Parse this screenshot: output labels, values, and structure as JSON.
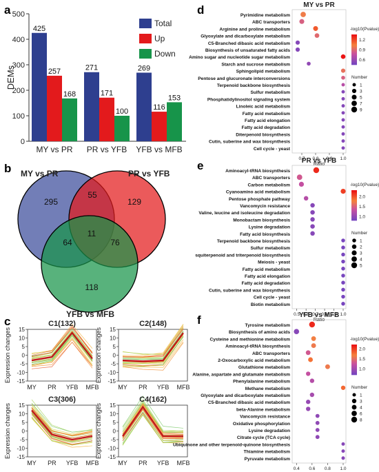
{
  "panel_labels": [
    "a",
    "b",
    "c",
    "d",
    "e",
    "f"
  ],
  "chart_data": [
    {
      "id": "a",
      "type": "bar",
      "ylabel": "DEMs",
      "ylim": [
        0,
        500
      ],
      "yticks": [
        0,
        100,
        200,
        300,
        400,
        500
      ],
      "categories": [
        "MY vs PR",
        "PR vs YFB",
        "YFB vs MFB"
      ],
      "series": [
        {
          "name": "Total",
          "color": "#2e3f8f",
          "values": [
            425,
            271,
            269
          ]
        },
        {
          "name": "Up",
          "color": "#e31a1c",
          "values": [
            257,
            171,
            116
          ]
        },
        {
          "name": "Down",
          "color": "#17944a",
          "values": [
            168,
            100,
            153
          ]
        }
      ],
      "legend": "top-right"
    },
    {
      "id": "b",
      "type": "venn",
      "sets": [
        {
          "name": "MY vs PR",
          "color": "#3b4c9b"
        },
        {
          "name": "PR vs YFB",
          "color": "#e31a1c"
        },
        {
          "name": "YFB vs MFB",
          "color": "#17944a"
        }
      ],
      "regions": {
        "only_1": 295,
        "only_2": 129,
        "only_3": 118,
        "1_2": 55,
        "1_3": 64,
        "2_3": 76,
        "1_2_3": 11
      }
    },
    {
      "id": "c",
      "type": "line",
      "ylabel": "Expression changes",
      "xticks": [
        "MY",
        "PR",
        "YFB",
        "MFB"
      ],
      "yticks": [
        -15,
        -10,
        -5,
        0,
        5,
        10,
        15
      ],
      "ylim": [
        -15,
        15
      ],
      "clusters": [
        {
          "title": "C1(132)",
          "mean": [
            -3,
            -1,
            13,
            -2
          ]
        },
        {
          "title": "C2(148)",
          "mean": [
            -3,
            -3.5,
            -3,
            13
          ]
        },
        {
          "title": "C3(306)",
          "mean": [
            12,
            -2,
            -5,
            -3
          ]
        },
        {
          "title": "C4(162)",
          "mean": [
            -3,
            14,
            -3,
            -3
          ]
        }
      ]
    },
    {
      "id": "d",
      "type": "scatter",
      "title": "MY vs PR",
      "xlabel": "Ratio",
      "xlim": [
        0.65,
        1.0
      ],
      "xticks": [
        "0.7",
        "0.8",
        "0.9",
        "1.0"
      ],
      "xtick_values": [
        0.7,
        0.8,
        0.9,
        1.0
      ],
      "color_title": "-log10(Pvalue)",
      "color_ticks": [
        "1.2",
        "0.9",
        "0.6"
      ],
      "color_tick_values": [
        1.2,
        0.9,
        0.6
      ],
      "color_range": [
        0.45,
        1.35
      ],
      "size_title": "Number",
      "size_legend": [
        1,
        3,
        5,
        7,
        9
      ],
      "points": [
        {
          "term": "Pyrimidine metabolism",
          "ratio": 0.71,
          "number": 7,
          "p": 1.0
        },
        {
          "term": "ABC transporters",
          "ratio": 0.7,
          "number": 5,
          "p": 0.85
        },
        {
          "term": "Arginine and proline metabolism",
          "ratio": 0.8,
          "number": 5,
          "p": 1.15
        },
        {
          "term": "Glyoxylate and dicarboxylate metabolism",
          "ratio": 0.81,
          "number": 4,
          "p": 0.9
        },
        {
          "term": "C5-Branched dibasic acid metabolism",
          "ratio": 0.67,
          "number": 3,
          "p": 0.5
        },
        {
          "term": "Biosynthesis of unsaturated fatty acids",
          "ratio": 0.67,
          "number": 3,
          "p": 0.5
        },
        {
          "term": "Amino sugar and nucleotide sugar metabolism",
          "ratio": 1.0,
          "number": 4,
          "p": 1.35
        },
        {
          "term": "Starch and sucrose metabolism",
          "ratio": 0.75,
          "number": 2,
          "p": 0.55
        },
        {
          "term": "Sphingolipid metabolism",
          "ratio": 1.0,
          "number": 3,
          "p": 0.95
        },
        {
          "term": "Pentose and glucuronate interconversions",
          "ratio": 1.0,
          "number": 2,
          "p": 0.85
        },
        {
          "term": "Terpenoid backbone biosynthesis",
          "ratio": 1.0,
          "number": 1,
          "p": 0.7
        },
        {
          "term": "Sulfur metabolism",
          "ratio": 1.0,
          "number": 1,
          "p": 0.5
        },
        {
          "term": "Phosphatidylinositol signaling system",
          "ratio": 1.0,
          "number": 1,
          "p": 0.5
        },
        {
          "term": "Linoleic acid metabolism",
          "ratio": 1.0,
          "number": 1,
          "p": 0.5
        },
        {
          "term": "Fatty acid metabolism",
          "ratio": 1.0,
          "number": 1,
          "p": 0.5
        },
        {
          "term": "Fatty acid elongation",
          "ratio": 1.0,
          "number": 1,
          "p": 0.5
        },
        {
          "term": "Fatty acid degradation",
          "ratio": 1.0,
          "number": 1,
          "p": 0.5
        },
        {
          "term": "Diterpenoid biosynthesis",
          "ratio": 1.0,
          "number": 1,
          "p": 0.5
        },
        {
          "term": "Cutin, suberine and wax biosynthesis",
          "ratio": 1.0,
          "number": 1,
          "p": 0.5
        },
        {
          "term": "Cell cycle - yeast",
          "ratio": 1.0,
          "number": 1,
          "p": 0.5
        }
      ]
    },
    {
      "id": "e",
      "type": "scatter",
      "title": "PR vs YFB",
      "xlabel": "Ratio",
      "xlim": [
        0.48,
        1.0
      ],
      "xticks": [
        "0.5",
        "0.6",
        "0.7",
        "0.8",
        "0.9",
        "1.0"
      ],
      "xtick_values": [
        0.5,
        0.6,
        0.7,
        0.8,
        0.9,
        1.0
      ],
      "color_title": "-log10(Pvalue)",
      "color_ticks": [
        "2.0",
        "1.5",
        "1.0"
      ],
      "color_tick_values": [
        2.0,
        1.5,
        1.0
      ],
      "color_range": [
        0.8,
        2.3
      ],
      "size_title": "Number",
      "size_legend": [
        1,
        2,
        3,
        4,
        5
      ],
      "points": [
        {
          "term": "Aminoacyl-tRNA biosynthesis",
          "ratio": 0.71,
          "number": 5,
          "p": 2.2
        },
        {
          "term": "ABC transporters",
          "ratio": 0.53,
          "number": 4,
          "p": 1.4
        },
        {
          "term": "Carbon metabolism",
          "ratio": 0.55,
          "number": 3,
          "p": 1.3
        },
        {
          "term": "Cyanoamino acid metabolism",
          "ratio": 1.0,
          "number": 3,
          "p": 2.1
        },
        {
          "term": "Pentose phosphate pathway",
          "ratio": 0.6,
          "number": 2,
          "p": 1.2
        },
        {
          "term": "Vancomycin resistance",
          "ratio": 0.67,
          "number": 2,
          "p": 0.9
        },
        {
          "term": "Valine, leucine and isoleucine degradation",
          "ratio": 0.67,
          "number": 2,
          "p": 0.9
        },
        {
          "term": "Monobactam biosynthesis",
          "ratio": 0.67,
          "number": 2,
          "p": 0.9
        },
        {
          "term": "Lysine degradation",
          "ratio": 0.67,
          "number": 2,
          "p": 0.9
        },
        {
          "term": "Fatty acid biosynthesis",
          "ratio": 0.67,
          "number": 2,
          "p": 0.9
        },
        {
          "term": "Terpenoid backbone biosynthesis",
          "ratio": 1.0,
          "number": 1,
          "p": 0.8
        },
        {
          "term": "Sulfur metabolism",
          "ratio": 1.0,
          "number": 1,
          "p": 0.8
        },
        {
          "term": "squiterpenoid and triterpenoid biosynthesis",
          "ratio": 1.0,
          "number": 1,
          "p": 0.8
        },
        {
          "term": "Meiosis - yeast",
          "ratio": 1.0,
          "number": 1,
          "p": 0.8
        },
        {
          "term": "Fatty acid metabolism",
          "ratio": 1.0,
          "number": 1,
          "p": 0.8
        },
        {
          "term": "Fatty acid elongation",
          "ratio": 1.0,
          "number": 1,
          "p": 0.8
        },
        {
          "term": "Fatty acid degradation",
          "ratio": 1.0,
          "number": 1,
          "p": 0.8
        },
        {
          "term": "Cutin, suberine and wax biosynthesis",
          "ratio": 1.0,
          "number": 1,
          "p": 0.8
        },
        {
          "term": "Cell cycle - yeast",
          "ratio": 1.0,
          "number": 1,
          "p": 0.8
        },
        {
          "term": "Biotin metabolism",
          "ratio": 1.0,
          "number": 1,
          "p": 0.8
        }
      ]
    },
    {
      "id": "f",
      "type": "scatter",
      "title": "YFB vs MFB",
      "xlabel": "Ratio",
      "xlim": [
        0.38,
        1.0
      ],
      "xticks": [
        "0.4",
        "0.6",
        "0.8",
        "1.0"
      ],
      "xtick_values": [
        0.4,
        0.6,
        0.8,
        1.0
      ],
      "color_title": "-log10(Pvalue)",
      "color_ticks": [
        "2.0",
        "1.5",
        "1.0"
      ],
      "color_tick_values": [
        2.0,
        1.5,
        1.0
      ],
      "color_range": [
        0.7,
        2.2
      ],
      "size_title": "Number",
      "size_legend": [
        1,
        3,
        4,
        6,
        8
      ],
      "points": [
        {
          "term": "Tyrosine metabolism",
          "ratio": 0.6,
          "number": 8,
          "p": 2.1
        },
        {
          "term": "Biosynthesis of amino acids",
          "ratio": 0.4,
          "number": 6,
          "p": 0.8
        },
        {
          "term": "Cysteine and methionine metabolism",
          "ratio": 0.62,
          "number": 4,
          "p": 1.65
        },
        {
          "term": "Aminoacyl-tRNA biosynthesis",
          "ratio": 0.62,
          "number": 4,
          "p": 1.6
        },
        {
          "term": "ABC transporters",
          "ratio": 0.55,
          "number": 4,
          "p": 1.3
        },
        {
          "term": "2-Oxocarboxylic acid metabolism",
          "ratio": 0.58,
          "number": 4,
          "p": 1.75
        },
        {
          "term": "Glutathione metabolism",
          "ratio": 0.8,
          "number": 4,
          "p": 1.6
        },
        {
          "term": "Alanine, aspartate and glutamate metabolism",
          "ratio": 0.55,
          "number": 3,
          "p": 1.2
        },
        {
          "term": "Phenylalanine metabolism",
          "ratio": 0.6,
          "number": 3,
          "p": 1.1
        },
        {
          "term": "Methane metabolism",
          "ratio": 1.0,
          "number": 3,
          "p": 1.8
        },
        {
          "term": "Glyoxylate and dicarboxylate metabolism",
          "ratio": 0.6,
          "number": 3,
          "p": 1.0
        },
        {
          "term": "C5-Branched dibasic acid metabolism",
          "ratio": 0.55,
          "number": 3,
          "p": 0.9
        },
        {
          "term": "beta-Alanine metabolism",
          "ratio": 0.55,
          "number": 3,
          "p": 0.9
        },
        {
          "term": "Vancomycin resistance",
          "ratio": 0.67,
          "number": 2,
          "p": 0.85
        },
        {
          "term": "Oxidative phosphorylation",
          "ratio": 0.67,
          "number": 2,
          "p": 0.85
        },
        {
          "term": "Lysine degradation",
          "ratio": 0.67,
          "number": 2,
          "p": 0.85
        },
        {
          "term": "Citrate cycle (TCA cycle)",
          "ratio": 0.67,
          "number": 2,
          "p": 0.85
        },
        {
          "term": "Ubiquinone and other terpenoid-quinone biosynthesis",
          "ratio": 1.0,
          "number": 1,
          "p": 0.8
        },
        {
          "term": "Thiamine metabolism",
          "ratio": 1.0,
          "number": 1,
          "p": 0.8
        },
        {
          "term": "Pyruvate metabolism",
          "ratio": 1.0,
          "number": 1,
          "p": 0.8
        }
      ]
    }
  ]
}
